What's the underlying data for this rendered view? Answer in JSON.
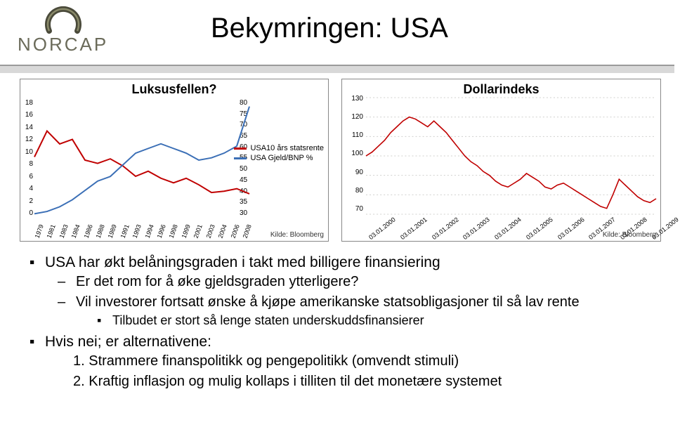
{
  "logo_text": "NORCAP",
  "title": "Bekymringen: USA",
  "chart1": {
    "title": "Luksusfellen?",
    "title_fontsize": 18,
    "source": "Kilde: Bloomberg",
    "left_axis": {
      "min": 0,
      "max": 18,
      "ticks": [
        0,
        2,
        4,
        6,
        8,
        10,
        12,
        14,
        16,
        18
      ]
    },
    "right_axis": {
      "min": 30,
      "max": 80,
      "ticks": [
        30,
        35,
        40,
        45,
        50,
        55,
        60,
        65,
        70,
        75,
        80
      ]
    },
    "x_labels": [
      "1979",
      "1981",
      "1983",
      "1984",
      "1986",
      "1988",
      "1989",
      "1991",
      "1993",
      "1994",
      "1996",
      "1998",
      "1999",
      "2001",
      "2003",
      "2004",
      "2006",
      "2008"
    ],
    "series": [
      {
        "name": "USA10 års statsrente",
        "color": "#C00000",
        "axis": "left",
        "data": [
          9.5,
          13.5,
          11.5,
          12.2,
          9.0,
          8.5,
          9.2,
          8.1,
          6.5,
          7.3,
          6.2,
          5.5,
          6.2,
          5.2,
          4.0,
          4.2,
          4.6,
          3.8
        ]
      },
      {
        "name": "USA Gjeld/BNP %",
        "color": "#3B6FB6",
        "axis": "right",
        "data": [
          32,
          33,
          35,
          38,
          42,
          46,
          48,
          53,
          58,
          60,
          62,
          60,
          58,
          55,
          56,
          58,
          61,
          78
        ]
      }
    ],
    "legend_fontsize": 11
  },
  "chart2": {
    "title": "Dollarindeks",
    "title_fontsize": 18,
    "source": "Kilde: Bloomberg",
    "y_axis": {
      "min": 70,
      "max": 130,
      "ticks": [
        70,
        80,
        90,
        100,
        110,
        120,
        130
      ]
    },
    "x_labels": [
      "03.01.2000",
      "03.01.2001",
      "03.01.2002",
      "03.01.2003",
      "03.01.2004",
      "03.01.2005",
      "03.01.2006",
      "03.01.2007",
      "03.01.2008",
      "03.01.2009"
    ],
    "color": "#C00000",
    "grid_color": "#D0D0CE",
    "data": [
      100,
      102,
      105,
      108,
      112,
      115,
      118,
      120,
      119,
      117,
      115,
      118,
      115,
      112,
      108,
      104,
      100,
      97,
      95,
      92,
      90,
      87,
      85,
      84,
      86,
      88,
      91,
      89,
      87,
      84,
      83,
      85,
      86,
      84,
      82,
      80,
      78,
      76,
      74,
      73,
      80,
      88,
      85,
      82,
      79,
      77,
      76,
      78
    ]
  },
  "bullets": {
    "b1": "USA har økt belåningsgraden i takt med billigere finansiering",
    "b1a": "Er det rom for å øke gjeldsgraden ytterligere?",
    "b1b": "Vil investorer fortsatt ønske å kjøpe amerikanske statsobligasjoner til så lav rente",
    "b1b1": "Tilbudet er stort så lenge staten underskuddsfinansierer",
    "b2": "Hvis nei; er alternativene:",
    "b2_1": "1. Strammere finanspolitikk og pengepolitikk (omvendt stimuli)",
    "b2_2": "2. Kraftig inflasjon og mulig kollaps i tilliten til det monetære systemet"
  }
}
